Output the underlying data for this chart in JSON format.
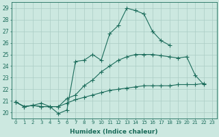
{
  "xlabel": "Humidex (Indice chaleur)",
  "ylabel": "",
  "xlim": [
    -0.5,
    23.5
  ],
  "ylim": [
    19.5,
    29.5
  ],
  "xticks": [
    0,
    1,
    2,
    3,
    4,
    5,
    6,
    7,
    8,
    9,
    10,
    11,
    12,
    13,
    14,
    15,
    16,
    17,
    18,
    19,
    20,
    21,
    22,
    23
  ],
  "yticks": [
    20,
    21,
    22,
    23,
    24,
    25,
    26,
    27,
    28,
    29
  ],
  "bg_color": "#cce8e0",
  "grid_color": "#aaccc4",
  "line_color": "#1a6b5a",
  "lines": [
    {
      "x": [
        0,
        1,
        2,
        3,
        4,
        5,
        6,
        7,
        8,
        9,
        10,
        11,
        12,
        13,
        14,
        15,
        16,
        17,
        18,
        19,
        20,
        21,
        22
      ],
      "y": [
        20.9,
        20.5,
        20.6,
        20.8,
        20.5,
        19.9,
        20.2,
        24.4,
        24.5,
        25.0,
        24.5,
        26.8,
        27.5,
        29.0,
        28.8,
        28.5,
        27.0,
        26.2,
        25.8,
        null,
        null,
        null,
        null
      ]
    },
    {
      "x": [
        0,
        1,
        2,
        3,
        4,
        5,
        6,
        7,
        8,
        9,
        10,
        11,
        12,
        13,
        14,
        15,
        16,
        17,
        18,
        19,
        20,
        21,
        22,
        23
      ],
      "y": [
        20.9,
        20.5,
        20.6,
        20.5,
        20.5,
        20.5,
        21.2,
        21.5,
        22.3,
        22.8,
        23.5,
        24.0,
        24.5,
        24.8,
        25.0,
        25.0,
        25.0,
        24.9,
        24.8,
        24.7,
        24.8,
        23.2,
        22.4,
        null
      ]
    },
    {
      "x": [
        0,
        1,
        2,
        3,
        4,
        5,
        6,
        7,
        8,
        9,
        10,
        11,
        12,
        13,
        14,
        15,
        16,
        17,
        18,
        19,
        20,
        21,
        22,
        23
      ],
      "y": [
        20.9,
        20.5,
        20.6,
        20.5,
        20.5,
        20.5,
        20.8,
        21.1,
        21.3,
        21.5,
        21.7,
        21.9,
        22.0,
        22.1,
        22.2,
        22.3,
        22.3,
        22.3,
        22.3,
        22.4,
        22.4,
        22.4,
        22.5,
        null
      ]
    }
  ]
}
